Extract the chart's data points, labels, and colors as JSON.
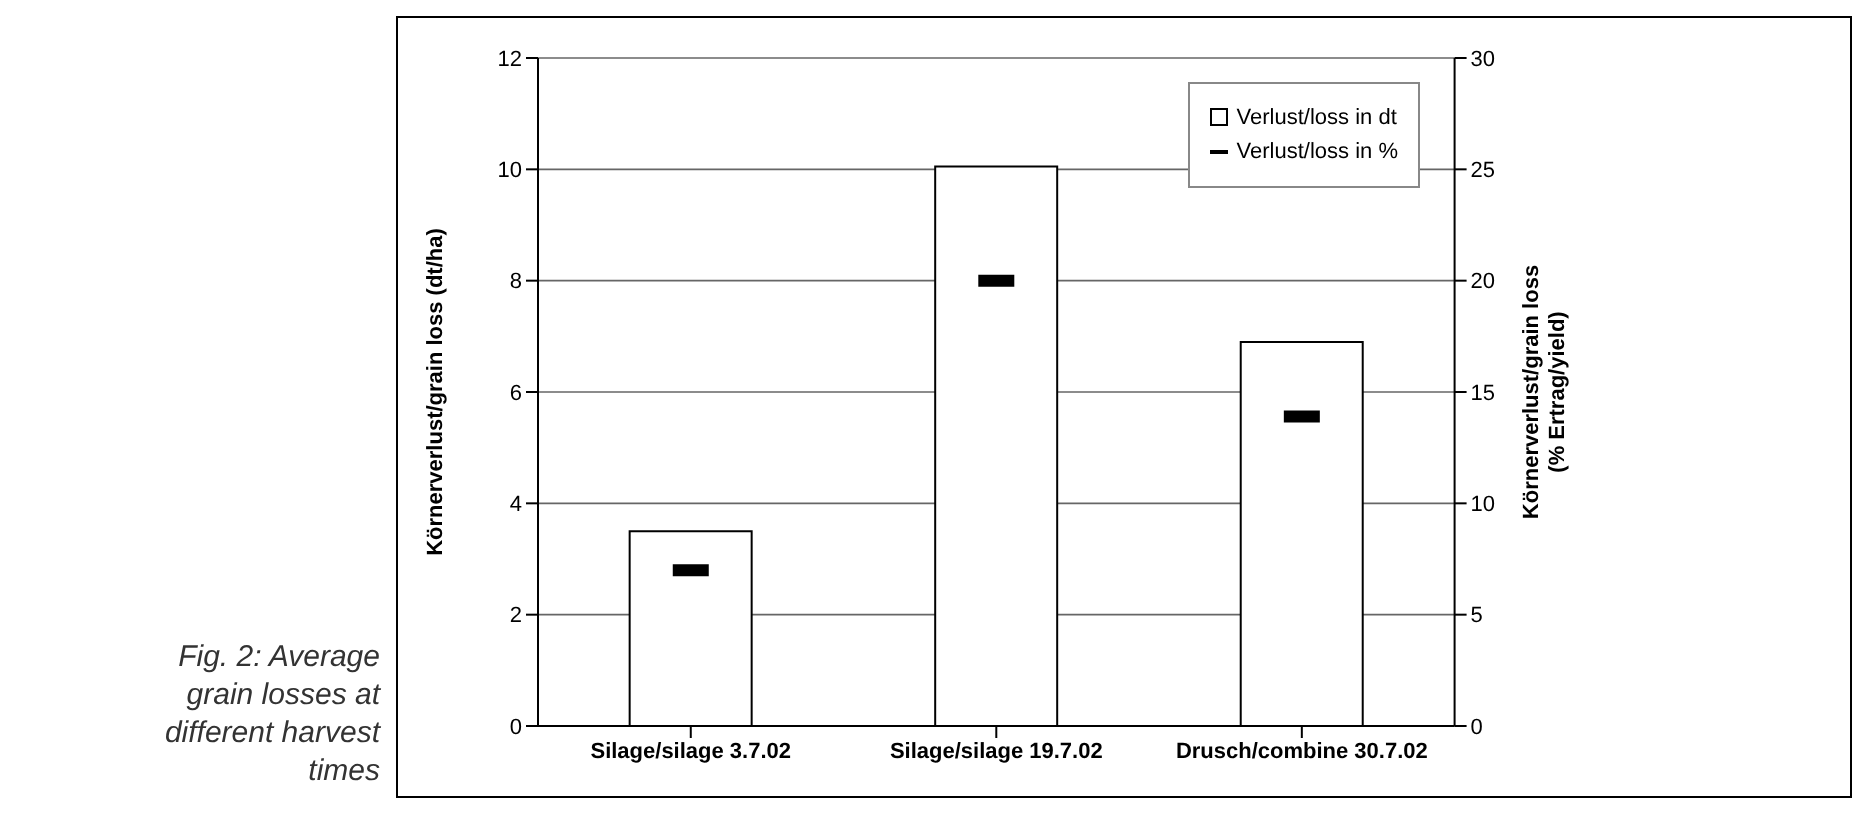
{
  "chart_data": {
    "type": "bar",
    "categories": [
      "Silage/silage 3.7.02",
      "Silage/silage 19.7.02",
      "Drusch/combine 30.7.02"
    ],
    "series": [
      {
        "name": "Verlust/loss in dt",
        "color": "#ffffff",
        "values": [
          3.5,
          10.05,
          6.9
        ]
      },
      {
        "name": "Verlust/loss in %",
        "type": "scatter",
        "axis": "y2",
        "color": "#000000",
        "values": [
          7,
          20,
          13.9
        ]
      }
    ],
    "ylabel": "Körnerverlust/grain loss (dt/ha)",
    "y2label": "Körnerverlust/grain loss\n(% Ertrag/yield)",
    "ylim": [
      0,
      12
    ],
    "yticks": [
      0,
      2,
      4,
      6,
      8,
      10,
      12
    ],
    "y2lim": [
      0,
      30
    ],
    "y2ticks": [
      0,
      5,
      10,
      15,
      20,
      25,
      30
    ],
    "grid": "y",
    "legend": "top right",
    "annotations": [
      "Fig. 2: Average grain losses at different harvest times"
    ]
  }
}
